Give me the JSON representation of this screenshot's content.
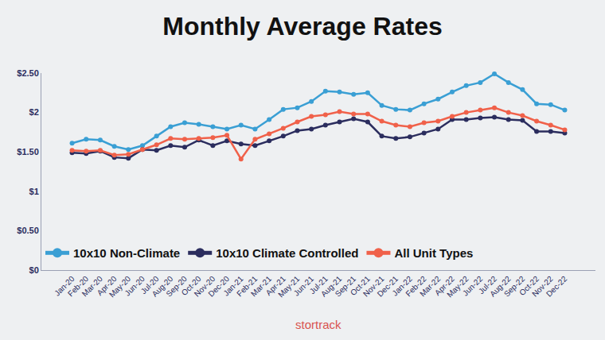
{
  "chart_data": {
    "type": "line",
    "title": "Monthly Average Rates",
    "source": "stortrack",
    "categories": [
      "Jan-20",
      "Feb-20",
      "Mar-20",
      "Apr-20",
      "May-20",
      "Jun-20",
      "Jul-20",
      "Aug-20",
      "Sep-20",
      "Oct-20",
      "Nov-20",
      "Dec-20",
      "Jan-21",
      "Feb-21",
      "Mar-21",
      "Apr-21",
      "May-21",
      "Jun-21",
      "Jul-21",
      "Aug-21",
      "Sep-21",
      "Oct-21",
      "Nov-21",
      "Dec-21",
      "Jan-22",
      "Feb-22",
      "Mar-22",
      "Apr-22",
      "May-22",
      "Jun-22",
      "Jul-22",
      "Aug-22",
      "Sep-22",
      "Oct-22",
      "Nov-22",
      "Dec-22"
    ],
    "series": [
      {
        "name": "10x10 Non-Climate",
        "color": "#3a9fd4",
        "marker": "circle",
        "values": [
          1.61,
          1.66,
          1.65,
          1.57,
          1.53,
          1.58,
          1.7,
          1.82,
          1.87,
          1.85,
          1.82,
          1.79,
          1.84,
          1.79,
          1.91,
          2.04,
          2.06,
          2.14,
          2.27,
          2.26,
          2.23,
          2.25,
          2.09,
          2.04,
          2.03,
          2.11,
          2.17,
          2.26,
          2.34,
          2.38,
          2.49,
          2.38,
          2.29,
          2.11,
          2.1,
          2.03
        ]
      },
      {
        "name": "10x10 Climate Controlled",
        "color": "#2b2d5e",
        "marker": "circle",
        "values": [
          1.49,
          1.48,
          1.51,
          1.43,
          1.42,
          1.53,
          1.52,
          1.58,
          1.56,
          1.65,
          1.58,
          1.64,
          1.6,
          1.58,
          1.64,
          1.7,
          1.77,
          1.79,
          1.84,
          1.88,
          1.92,
          1.88,
          1.7,
          1.67,
          1.69,
          1.74,
          1.79,
          1.91,
          1.91,
          1.93,
          1.94,
          1.91,
          1.9,
          1.76,
          1.76,
          1.74
        ]
      },
      {
        "name": "All Unit Types",
        "color": "#f0614a",
        "marker": "circle",
        "values": [
          1.52,
          1.51,
          1.52,
          1.46,
          1.47,
          1.53,
          1.59,
          1.67,
          1.66,
          1.67,
          1.68,
          1.71,
          1.41,
          1.66,
          1.73,
          1.8,
          1.88,
          1.95,
          1.97,
          2.01,
          1.98,
          1.98,
          1.89,
          1.84,
          1.82,
          1.87,
          1.89,
          1.95,
          2.0,
          2.03,
          2.06,
          2.0,
          1.96,
          1.89,
          1.84,
          1.78
        ]
      }
    ],
    "ylim": [
      0,
      2.5
    ],
    "yticks": [
      {
        "value": 0,
        "label": "$0"
      },
      {
        "value": 0.5,
        "label": "$0.50"
      },
      {
        "value": 1,
        "label": "$1"
      },
      {
        "value": 1.5,
        "label": "$1.50"
      },
      {
        "value": 2,
        "label": "$2"
      },
      {
        "value": 2.5,
        "label": "$2.50"
      }
    ],
    "grid": false,
    "legend": "bottom"
  }
}
